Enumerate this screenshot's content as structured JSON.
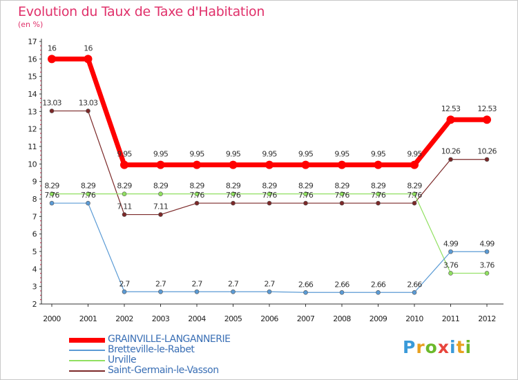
{
  "title": "Evolution du Taux de Taxe d'Habitation",
  "subtitle": "(en %)",
  "logo": {
    "letters": [
      "P",
      "r",
      "o",
      "x",
      "i",
      "t",
      "i"
    ],
    "colors": [
      "#3a9ad9",
      "#e8a020",
      "#6cb92b",
      "#e8453c",
      "#3a9ad9",
      "#e8a020",
      "#6cb92b"
    ]
  },
  "chart_data": {
    "type": "line",
    "title": "Evolution du Taux de Taxe d'Habitation",
    "ylabel": "(en %)",
    "x": [
      "2000",
      "2001",
      "2002",
      "2003",
      "2004",
      "2005",
      "2006",
      "2007",
      "2008",
      "2009",
      "2010",
      "2011",
      "2012"
    ],
    "ylim": [
      2,
      17
    ],
    "yticks": [
      "2",
      "3",
      "4",
      "5",
      "6",
      "7",
      "8",
      "9",
      "10",
      "11",
      "12",
      "13",
      "14",
      "15",
      "16",
      "17"
    ],
    "grid": false,
    "legend": "bottom-left",
    "series": [
      {
        "name": "GRAINVILLE-LANGANNERIE",
        "color": "#ff0000",
        "width": 7,
        "values": [
          16,
          16,
          9.95,
          9.95,
          9.95,
          9.95,
          9.95,
          9.95,
          9.95,
          9.95,
          9.95,
          12.53,
          12.53
        ],
        "labels": [
          "16",
          "16",
          "9.95",
          "9.95",
          "9.95",
          "9.95",
          "9.95",
          "9.95",
          "9.95",
          "9.95",
          "9.95",
          "12.53",
          "12.53"
        ]
      },
      {
        "name": "Bretteville-le-Rabet",
        "color": "#5b9bd5",
        "width": 1.2,
        "values": [
          7.76,
          7.76,
          2.7,
          2.7,
          2.7,
          2.7,
          2.7,
          2.66,
          2.66,
          2.66,
          2.66,
          4.99,
          4.99
        ],
        "labels": [
          "7.76",
          "7.76",
          "2.7",
          "2.7",
          "2.7",
          "2.7",
          "2.7",
          "2.66",
          "2.66",
          "2.66",
          "2.66",
          "4.99",
          "4.99"
        ]
      },
      {
        "name": "Urville",
        "color": "#90e060",
        "width": 1.2,
        "values": [
          8.29,
          8.29,
          8.29,
          8.29,
          8.29,
          8.29,
          8.29,
          8.29,
          8.29,
          8.29,
          8.29,
          3.76,
          3.76
        ],
        "labels": [
          "8.29",
          "8.29",
          "8.29",
          "8.29",
          "8.29",
          "8.29",
          "8.29",
          "8.29",
          "8.29",
          "8.29",
          "8.29",
          "3.76",
          "3.76"
        ]
      },
      {
        "name": "Saint-Germain-le-Vasson",
        "color": "#7b2828",
        "width": 1.2,
        "values": [
          13.03,
          13.03,
          7.11,
          7.11,
          7.76,
          7.76,
          7.76,
          7.76,
          7.76,
          7.76,
          7.76,
          10.26,
          10.26
        ],
        "labels": [
          "13.03",
          "13.03",
          "7.11",
          "7.11",
          "7.76",
          "7.76",
          "7.76",
          "7.76",
          "7.76",
          "7.76",
          "7.76",
          "10.26",
          "10.26"
        ]
      }
    ]
  }
}
